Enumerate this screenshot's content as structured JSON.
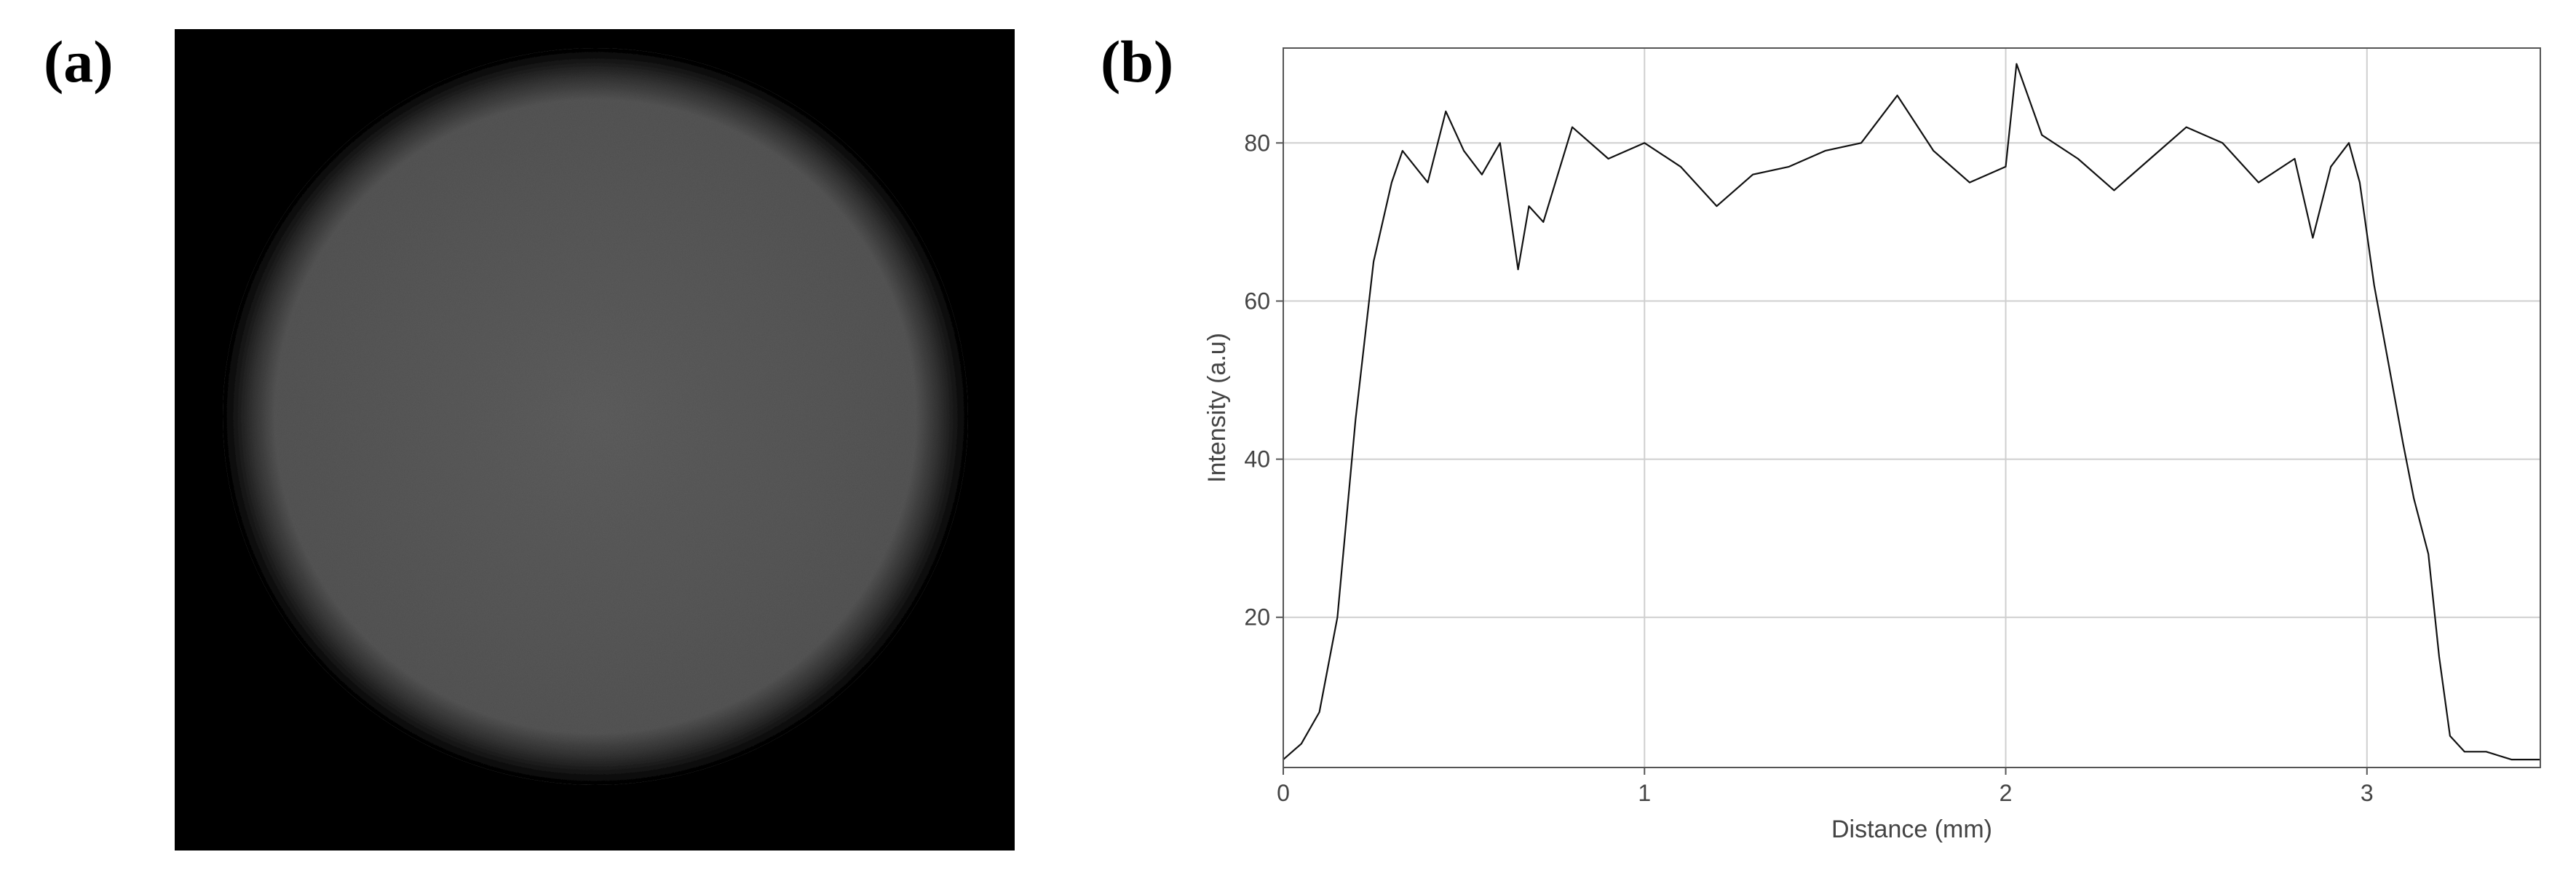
{
  "panels": {
    "a": {
      "label": "(a)"
    },
    "b": {
      "label": "(b)"
    }
  },
  "colors": {
    "line": "#111111",
    "grid": "#cfcfcf",
    "axis": "#555555",
    "disk": "#595959",
    "background_image": "#000000"
  },
  "chart_data": {
    "type": "line",
    "title": "",
    "xlabel": "Distance (mm)",
    "ylabel": "Intensity (a.u)",
    "xlim": [
      0,
      3.48
    ],
    "ylim": [
      1,
      92
    ],
    "xticks": [
      0,
      1,
      2,
      3
    ],
    "yticks": [
      20,
      40,
      60,
      80
    ],
    "grid": true,
    "legend": "none",
    "series": [
      {
        "x": [
          0,
          0.05,
          0.1,
          0.15,
          0.2,
          0.25,
          0.3,
          0.33,
          0.4,
          0.45,
          0.5,
          0.55,
          0.6,
          0.65,
          0.68,
          0.72,
          0.8,
          0.9,
          1.0,
          1.1,
          1.2,
          1.3,
          1.4,
          1.5,
          1.6,
          1.7,
          1.8,
          1.9,
          2.0,
          2.03,
          2.1,
          2.2,
          2.3,
          2.4,
          2.5,
          2.6,
          2.7,
          2.8,
          2.85,
          2.9,
          2.95,
          2.98,
          3.02,
          3.06,
          3.1,
          3.13,
          3.17,
          3.2,
          3.23,
          3.27,
          3.33,
          3.4,
          3.48
        ],
        "y": [
          2,
          4,
          8,
          20,
          45,
          65,
          75,
          79,
          75,
          84,
          79,
          76,
          80,
          64,
          72,
          70,
          82,
          78,
          80,
          77,
          72,
          76,
          77,
          79,
          80,
          86,
          79,
          75,
          77,
          90,
          81,
          78,
          74,
          78,
          82,
          80,
          75,
          78,
          68,
          77,
          80,
          75,
          62,
          52,
          42,
          35,
          28,
          15,
          5,
          3,
          3,
          2,
          2
        ]
      }
    ]
  }
}
